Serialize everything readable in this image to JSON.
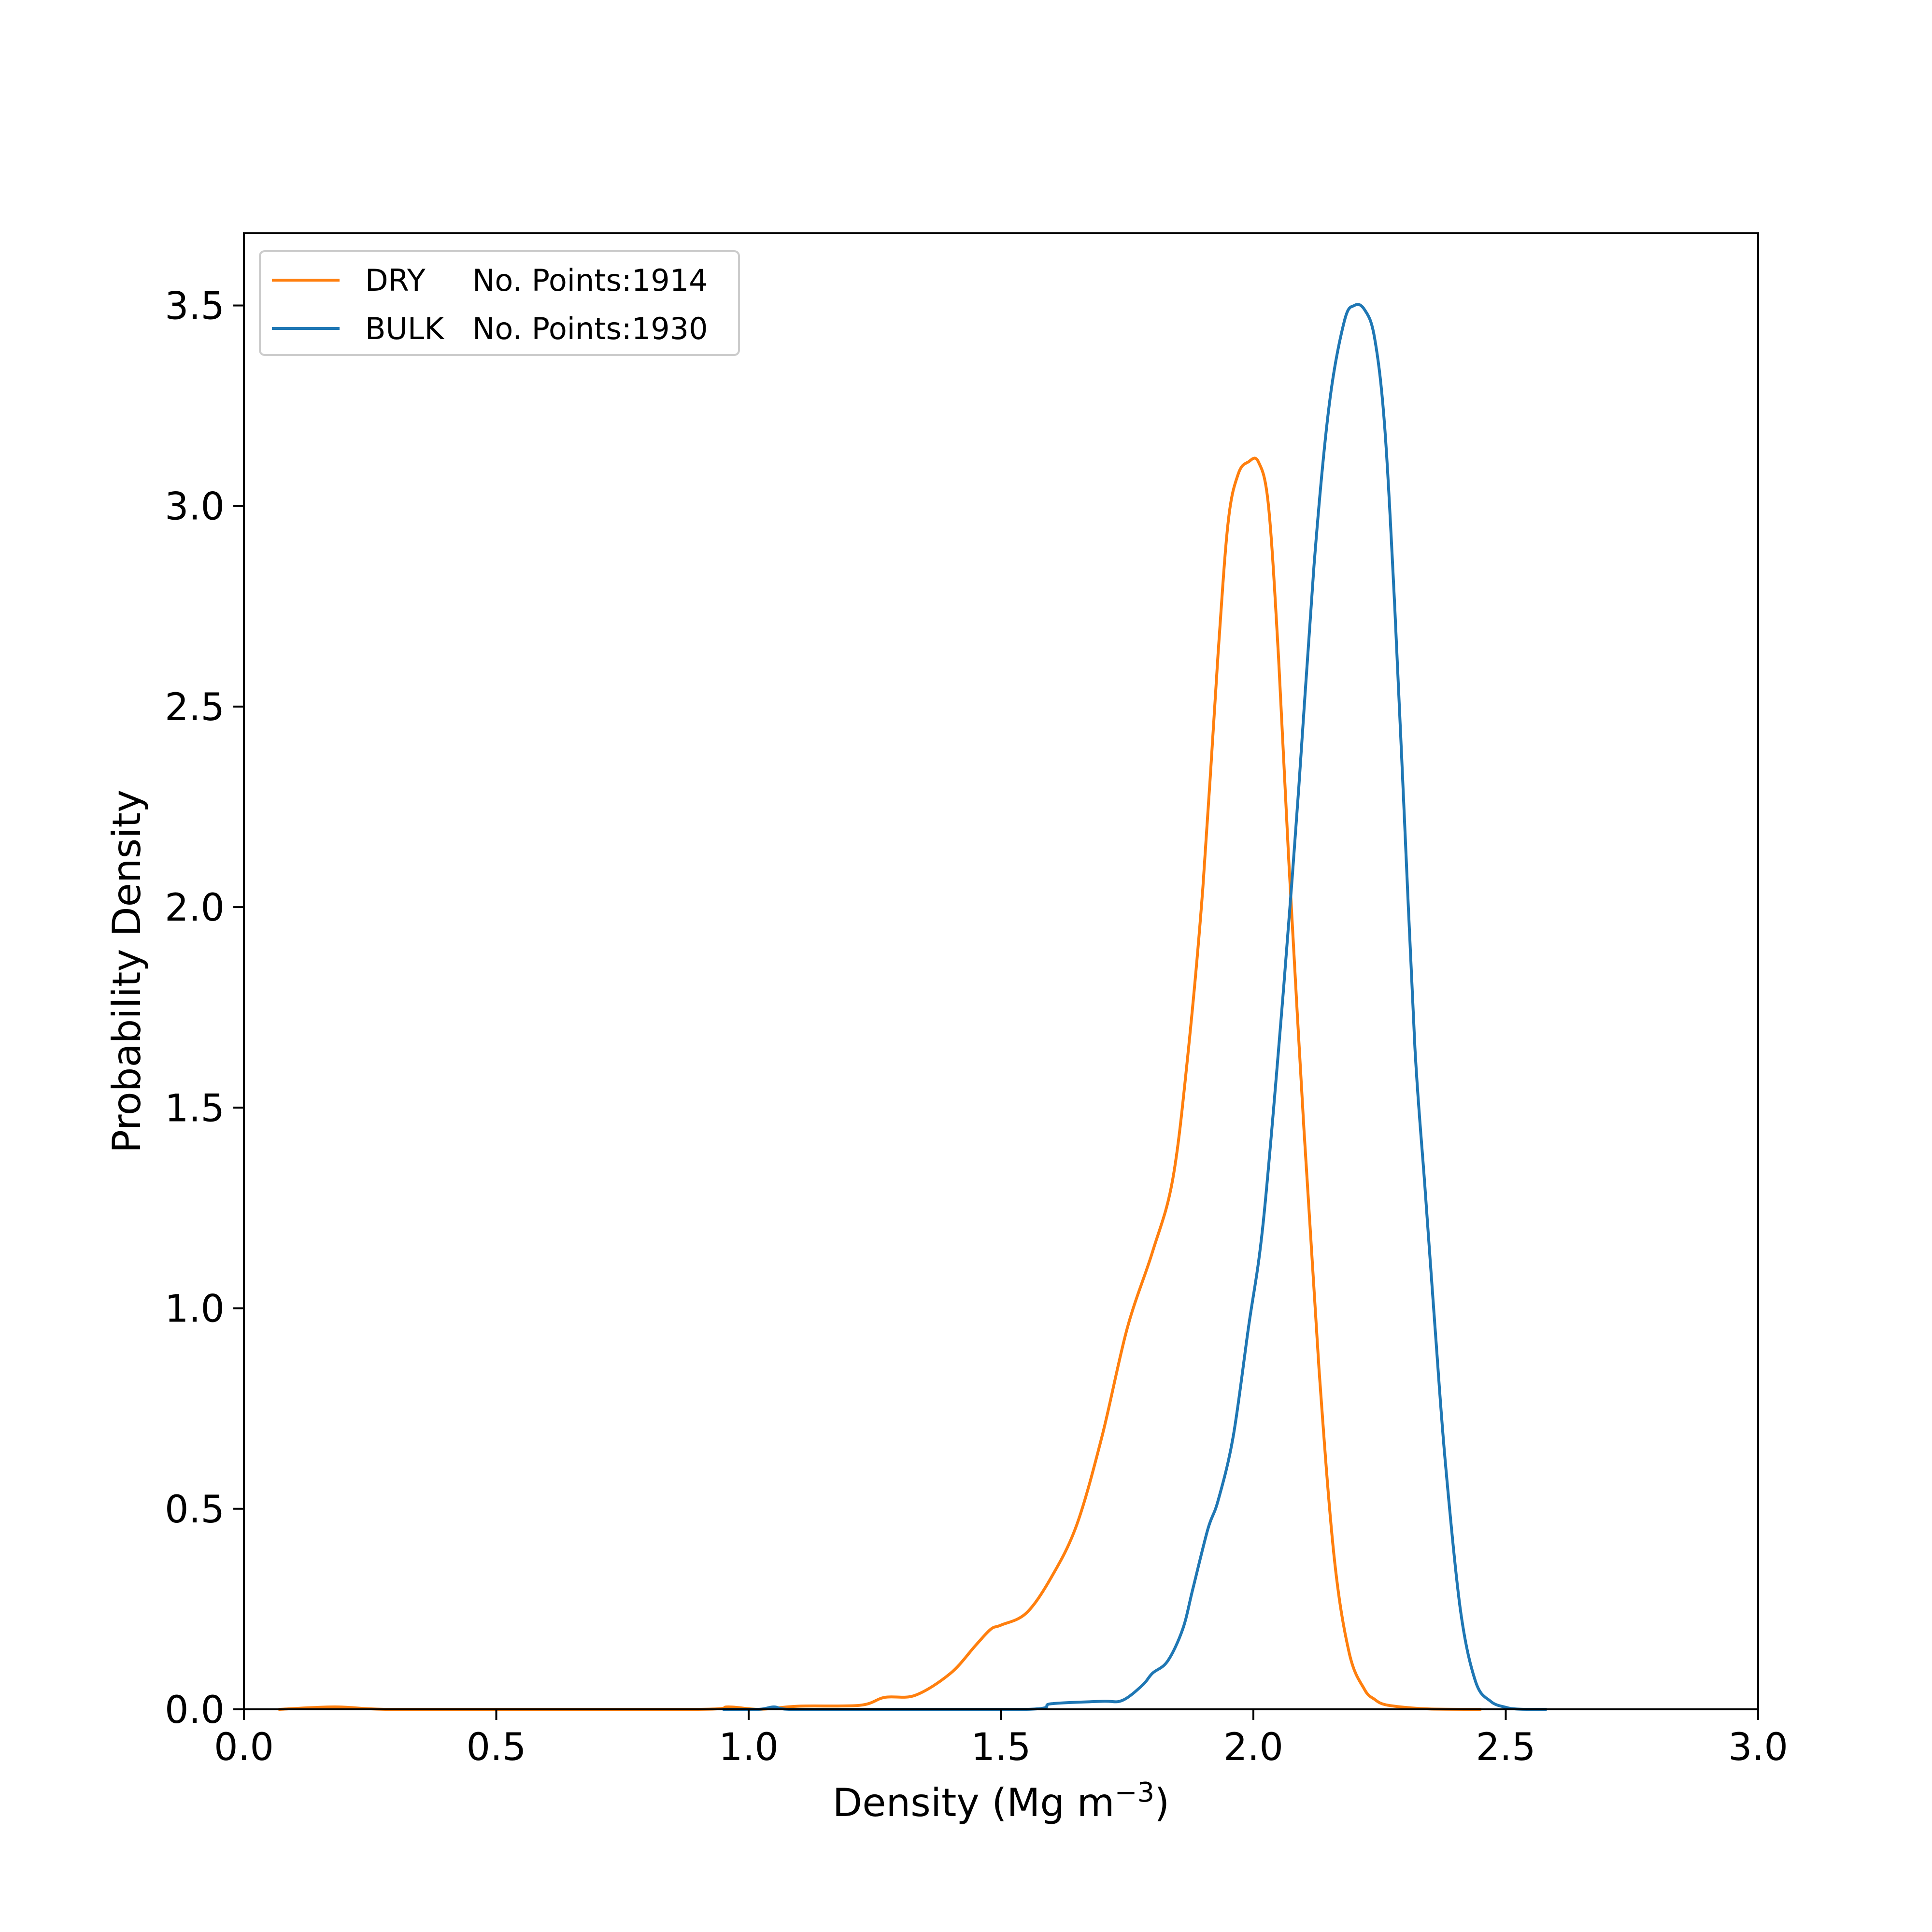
{
  "chart_data": {
    "type": "line",
    "title": "",
    "xlabel": "Density (Mg m",
    "xlabel_sup": "−3",
    "xlabel_close": ")",
    "ylabel": "Probability Density",
    "xlim": [
      0.0,
      3.0
    ],
    "ylim": [
      0.0,
      3.68
    ],
    "xticks": [
      "0.0",
      "0.5",
      "1.0",
      "1.5",
      "2.0",
      "2.5",
      "3.0"
    ],
    "yticks": [
      "0.0",
      "0.5",
      "1.0",
      "1.5",
      "2.0",
      "2.5",
      "3.0",
      "3.5"
    ],
    "grid": false,
    "legend_position": "top-left",
    "series": [
      {
        "name": "DRY",
        "legend_label": "No. Points:1914",
        "color": "#ff7f0e",
        "x": [
          0.07,
          0.18,
          0.28,
          0.5,
          0.9,
          0.96,
          1.02,
          1.1,
          1.22,
          1.27,
          1.33,
          1.4,
          1.45,
          1.48,
          1.5,
          1.55,
          1.6,
          1.65,
          1.7,
          1.75,
          1.8,
          1.84,
          1.87,
          1.9,
          1.93,
          1.95,
          1.97,
          1.99,
          2.01,
          2.03,
          2.05,
          2.07,
          2.1,
          2.13,
          2.16,
          2.19,
          2.22,
          2.24,
          2.26,
          2.3,
          2.35,
          2.45
        ],
        "y": [
          0.0,
          0.006,
          0.0,
          0.0,
          0.0,
          0.006,
          0.0,
          0.008,
          0.01,
          0.03,
          0.035,
          0.09,
          0.16,
          0.2,
          0.21,
          0.24,
          0.33,
          0.46,
          0.68,
          0.95,
          1.14,
          1.32,
          1.63,
          2.05,
          2.63,
          2.96,
          3.08,
          3.11,
          3.11,
          3.0,
          2.62,
          2.12,
          1.45,
          0.85,
          0.38,
          0.14,
          0.05,
          0.025,
          0.012,
          0.005,
          0.001,
          0.0
        ],
        "stroke_width": 6
      },
      {
        "name": "BULK",
        "legend_label": "No. Points:1930",
        "color": "#1f77b4",
        "x": [
          0.95,
          1.02,
          1.05,
          1.08,
          1.2,
          1.55,
          1.6,
          1.7,
          1.74,
          1.78,
          1.8,
          1.83,
          1.86,
          1.88,
          1.91,
          1.93,
          1.96,
          1.99,
          2.02,
          2.06,
          2.09,
          2.12,
          2.15,
          2.18,
          2.2,
          2.22,
          2.24,
          2.26,
          2.28,
          2.3,
          2.32,
          2.34,
          2.36,
          2.38,
          2.41,
          2.44,
          2.47,
          2.5,
          2.52,
          2.55,
          2.58
        ],
        "y": [
          0.0,
          0.0,
          0.006,
          0.0,
          0.0,
          0.0,
          0.014,
          0.02,
          0.022,
          0.06,
          0.09,
          0.12,
          0.2,
          0.3,
          0.45,
          0.52,
          0.68,
          0.95,
          1.22,
          1.8,
          2.3,
          2.85,
          3.25,
          3.46,
          3.5,
          3.49,
          3.42,
          3.2,
          2.75,
          2.2,
          1.65,
          1.3,
          0.95,
          0.62,
          0.25,
          0.07,
          0.02,
          0.005,
          0.001,
          0.0,
          0.0
        ],
        "stroke_width": 6
      }
    ]
  }
}
